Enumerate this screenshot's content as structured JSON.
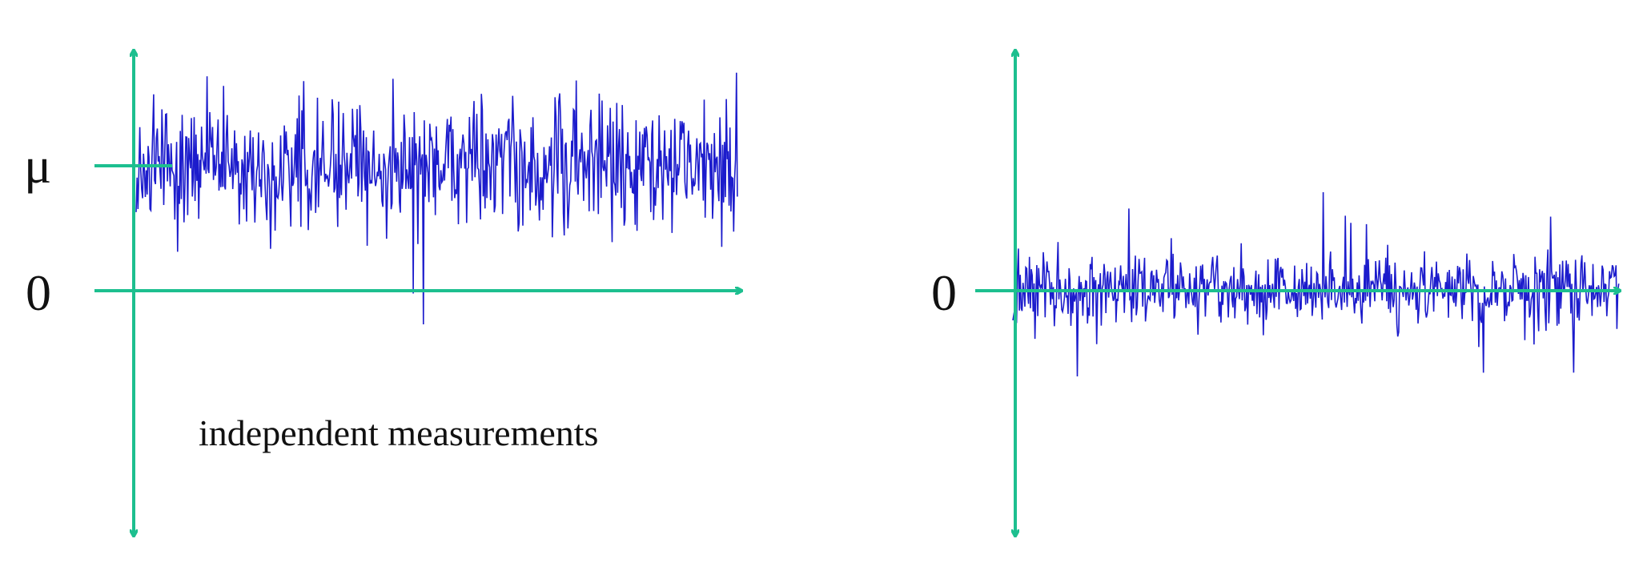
{
  "colors": {
    "axis": "#1dbf8f",
    "signal": "#1c1ccc",
    "text": "#111111",
    "background": "#ffffff"
  },
  "left_panel": {
    "mu_label": "μ",
    "zero_label": "0",
    "caption": "independent measurements",
    "signal": {
      "description_mean_level": "mu",
      "seed": 7
    }
  },
  "right_panel": {
    "zero_label": "0",
    "signal": {
      "description_mean_level": "zero",
      "seed": 19
    }
  }
}
